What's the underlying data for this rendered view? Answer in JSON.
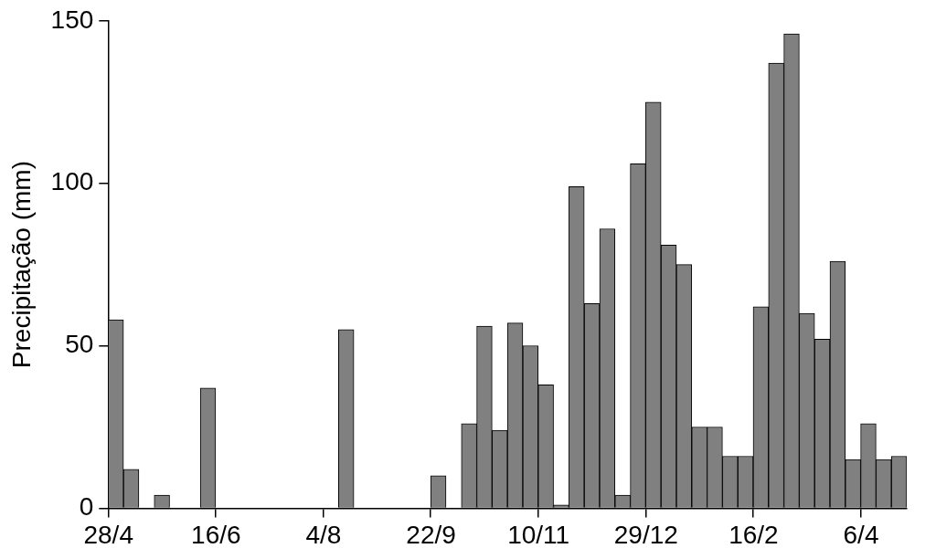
{
  "chart_data": {
    "type": "bar",
    "y_label": "Precipitação (mm)",
    "categories": [
      "28/4",
      null,
      null,
      null,
      null,
      null,
      null,
      "16/6",
      null,
      null,
      null,
      null,
      null,
      null,
      "4/8",
      null,
      null,
      null,
      null,
      null,
      null,
      "22/9",
      null,
      null,
      null,
      null,
      null,
      null,
      "10/11",
      null,
      null,
      null,
      null,
      null,
      null,
      "29/12",
      null,
      null,
      null,
      null,
      null,
      null,
      "16/2",
      null,
      null,
      null,
      null,
      null,
      null,
      "6/4",
      null,
      null
    ],
    "values": [
      58,
      12,
      0,
      4,
      0,
      0,
      37,
      0,
      0,
      0,
      0,
      0,
      0,
      0,
      0,
      55,
      0,
      0,
      0,
      0,
      0,
      10,
      0,
      26,
      56,
      24,
      57,
      50,
      38,
      1,
      99,
      63,
      86,
      4,
      106,
      125,
      81,
      75,
      25,
      25,
      16,
      16,
      62,
      137,
      146,
      60,
      52,
      76,
      15,
      26,
      15,
      16
    ],
    "color": "#808080",
    "ylim": [
      0,
      150
    ],
    "yticks": [
      0,
      50,
      100,
      150
    ],
    "grid": false
  }
}
